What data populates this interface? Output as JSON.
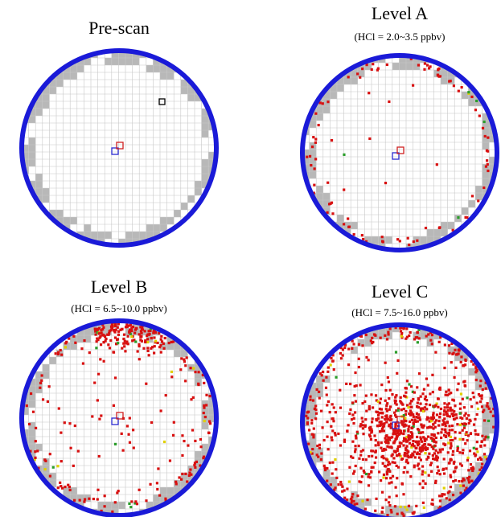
{
  "panels": [
    {
      "title": "Pre-scan"
    },
    {
      "title": "Level A",
      "subtitle": "(HCl = 2.0~3.5 ppbv)"
    },
    {
      "title": "Level B",
      "subtitle": "(HCl = 6.5~10.0 ppbv)"
    },
    {
      "title": "Level C",
      "subtitle": "(HCl = 7.5~16.0 ppbv)"
    }
  ]
}
